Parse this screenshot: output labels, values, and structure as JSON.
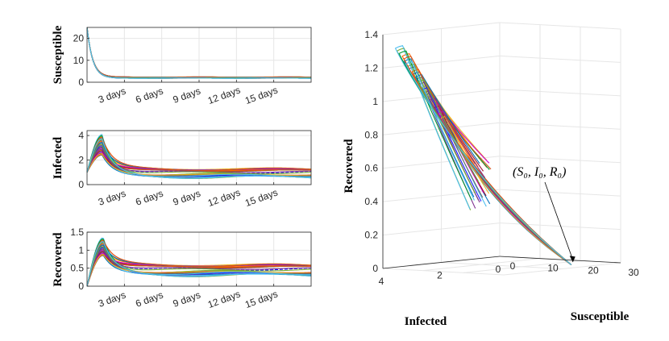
{
  "colors": [
    "#0072bd",
    "#d95319",
    "#edb120",
    "#7e2f8e",
    "#77ac30",
    "#4dbeee",
    "#a2142f",
    "#1a1aff",
    "#ff6600",
    "#009933",
    "#cc00cc",
    "#666666"
  ],
  "chart_data": [
    {
      "type": "line",
      "ylabel": "Susceptible",
      "x_ticks": [
        "3 days",
        "6 days",
        "9 days",
        "12 days",
        "15 days"
      ],
      "x_tick_values": [
        3,
        6,
        9,
        12,
        15
      ],
      "xlim": [
        0,
        18
      ],
      "ylim": [
        0,
        25
      ],
      "y_ticks": [
        "0",
        "10",
        "20"
      ],
      "y_tick_values": [
        0,
        10,
        20
      ],
      "grid": true,
      "n_series": 30,
      "initial_value": 25,
      "steady_state_range": [
        1.8,
        2.4
      ]
    },
    {
      "type": "line",
      "ylabel": "Infected",
      "x_ticks": [
        "3 days",
        "6 days",
        "9 days",
        "12 days",
        "15 days"
      ],
      "x_tick_values": [
        3,
        6,
        9,
        12,
        15
      ],
      "xlim": [
        0,
        18
      ],
      "ylim": [
        0,
        4.4
      ],
      "y_ticks": [
        "0",
        "2",
        "4"
      ],
      "y_tick_values": [
        0,
        2,
        4
      ],
      "grid": true,
      "n_series": 30,
      "initial_value": 1,
      "peak_day": 1.2,
      "peak_range": [
        2.4,
        4.1
      ],
      "steady_state_range": [
        0.6,
        1.3
      ]
    },
    {
      "type": "line",
      "ylabel": "Recovered",
      "x_ticks": [
        "3 days",
        "6 days",
        "9 days",
        "12 days",
        "15 days"
      ],
      "x_tick_values": [
        3,
        6,
        9,
        12,
        15
      ],
      "xlim": [
        0,
        18
      ],
      "ylim": [
        0,
        1.5
      ],
      "y_ticks": [
        "0",
        "0.5",
        "1",
        "1.5"
      ],
      "y_tick_values": [
        0,
        0.5,
        1,
        1.5
      ],
      "grid": true,
      "n_series": 30,
      "initial_value": 0,
      "peak_day": 1.3,
      "peak_range": [
        0.85,
        1.35
      ],
      "steady_state_range": [
        0.3,
        0.6
      ]
    },
    {
      "type": "line3d",
      "xlabel": "Susceptible",
      "ylabel": "Infected",
      "zlabel": "Recovered",
      "x_ticks": [
        "0",
        "10",
        "20",
        "30"
      ],
      "x_tick_values": [
        0,
        10,
        20,
        30
      ],
      "y_ticks": [
        "4",
        "2",
        "0"
      ],
      "y_tick_values": [
        4,
        2,
        0
      ],
      "z_ticks": [
        "0",
        "0.2",
        "0.4",
        "0.6",
        "0.8",
        "1",
        "1.2",
        "1.4"
      ],
      "z_tick_values": [
        0,
        0.2,
        0.4,
        0.6,
        0.8,
        1.0,
        1.2,
        1.4
      ],
      "xlim": [
        0,
        30
      ],
      "ylim": [
        0,
        4
      ],
      "zlim": [
        0,
        1.4
      ],
      "grid": true,
      "n_series": 30,
      "start_point": [
        25,
        1,
        0
      ],
      "annotation": "(S₀, I₀, R₀)"
    }
  ]
}
